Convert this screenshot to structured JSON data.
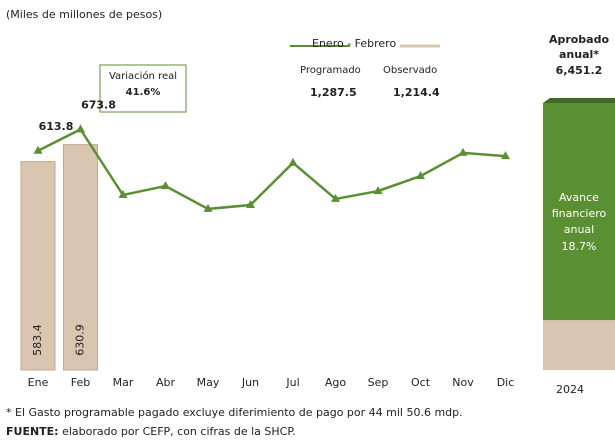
{
  "chart_data": {
    "type": "bar_line",
    "unit_note": "(Miles de millones de pesos)",
    "categories": [
      "Ene",
      "Feb",
      "Mar",
      "Abr",
      "May",
      "Jun",
      "Jul",
      "Ago",
      "Sep",
      "Oct",
      "Nov",
      "Dic"
    ],
    "ylim": [
      0,
      1036
    ],
    "legend_title": "Enero - Febrero",
    "series": [
      {
        "name": "Programado",
        "type": "line",
        "color": "#5b8f33",
        "values": [
          613.8,
          673.8,
          490,
          515,
          451,
          462,
          580,
          479,
          501,
          543,
          608,
          599
        ],
        "value_labels": [
          "613.8",
          "673.8",
          null,
          null,
          null,
          null,
          null,
          null,
          null,
          null,
          null,
          null
        ],
        "total": 1287.5,
        "total_label": "1,287.5"
      },
      {
        "name": "Observado",
        "type": "bar",
        "color": "#d9c5b0",
        "values": [
          583.4,
          630.9,
          null,
          null,
          null,
          null,
          null,
          null,
          null,
          null,
          null,
          null
        ],
        "total": 1214.4,
        "total_label": "1,214.4"
      }
    ],
    "annotation": {
      "title": "Variación real",
      "value": 41.6,
      "label": "41.6%"
    },
    "annual": {
      "title": "Aprobado anual*",
      "total": 6451.2,
      "total_label": "6,451.2",
      "category": "2024",
      "progress_title": "Avance financiero anual",
      "progress": 18.7,
      "progress_label": "18.7%",
      "color": "#5b8f33",
      "progress_color": "#d9c5b0"
    },
    "footnote": "* El Gasto programable pagado excluye diferimiento de pago por 44 mil 50.6 mdp.",
    "source_label": "FUENTE:",
    "source": "elaborado por CEFP, con cifras de la SHCP."
  }
}
